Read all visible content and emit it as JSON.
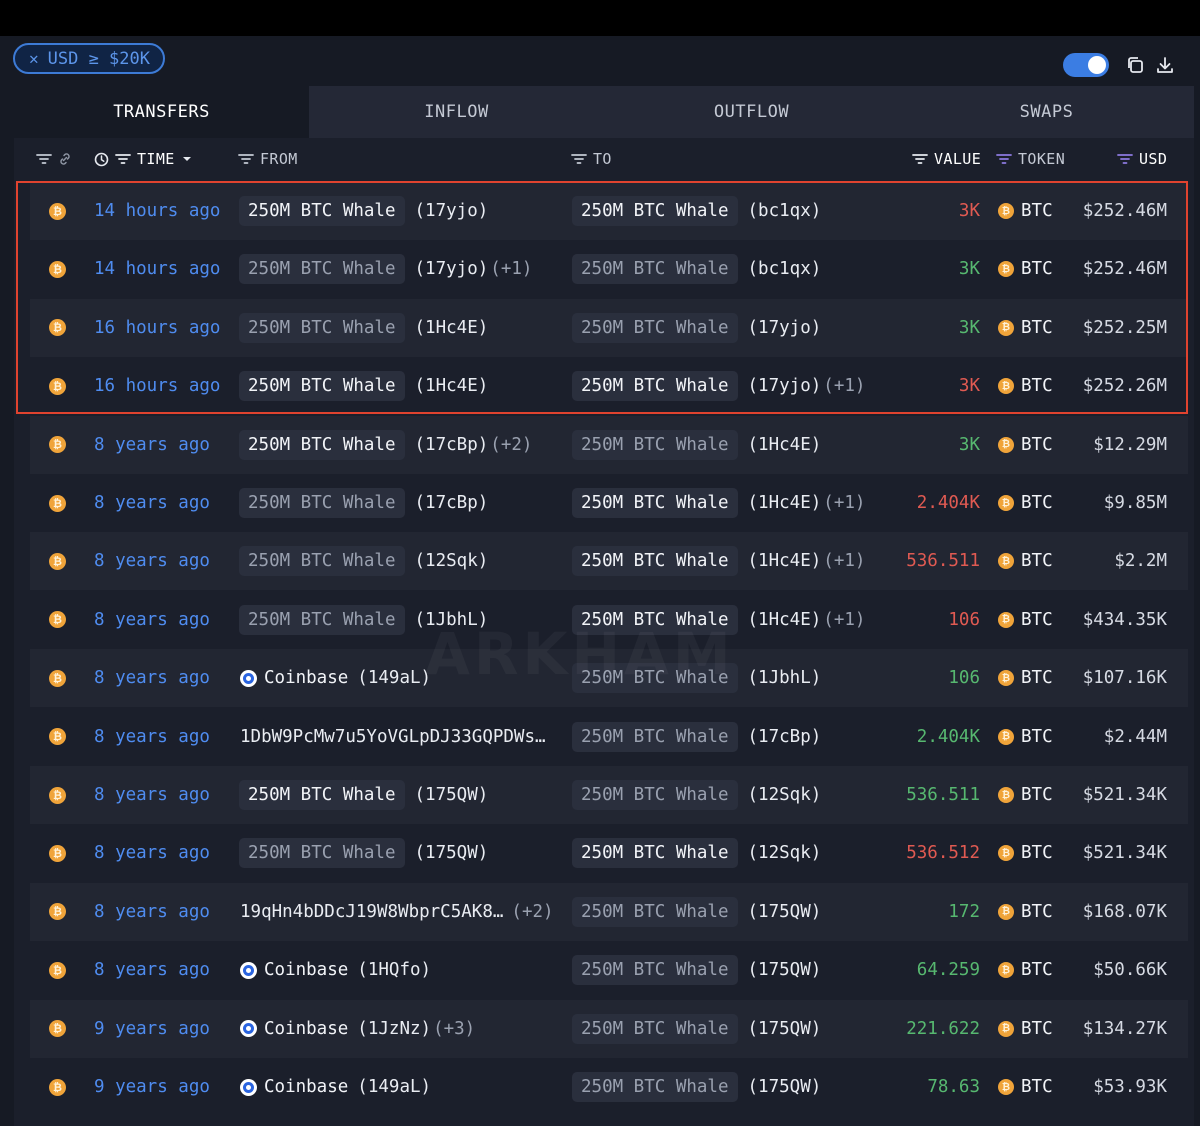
{
  "filter_chip": {
    "label": "USD ≥ $20K"
  },
  "tabs": [
    {
      "label": "TRANSFERS",
      "active": true
    },
    {
      "label": "INFLOW"
    },
    {
      "label": "OUTFLOW"
    },
    {
      "label": "SWAPS"
    }
  ],
  "columns": {
    "time": "TIME",
    "from": "FROM",
    "to": "TO",
    "value": "VALUE",
    "token": "TOKEN",
    "usd": "USD"
  },
  "watermark": "ARKHAM",
  "rows": [
    {
      "time": "14 hours ago",
      "from_entity": "250M BTC Whale",
      "from_addr": "(17yjo)",
      "from_extra": "",
      "to_entity": "250M BTC Whale",
      "to_addr": "(bc1qx)",
      "to_extra": "",
      "value": "3K",
      "value_color": "red",
      "token": "BTC",
      "usd": "$252.46M"
    },
    {
      "time": "14 hours ago",
      "from_entity": "250M BTC Whale",
      "from_addr": "(17yjo)",
      "from_extra": "(+1)",
      "to_entity": "250M BTC Whale",
      "to_addr": "(bc1qx)",
      "to_extra": "",
      "value": "3K",
      "value_color": "green",
      "token": "BTC",
      "usd": "$252.46M"
    },
    {
      "time": "16 hours ago",
      "from_entity": "250M BTC Whale",
      "from_addr": "(1Hc4E)",
      "from_extra": "",
      "to_entity": "250M BTC Whale",
      "to_addr": "(17yjo)",
      "to_extra": "",
      "value": "3K",
      "value_color": "green",
      "token": "BTC",
      "usd": "$252.25M"
    },
    {
      "time": "16 hours ago",
      "from_entity": "250M BTC Whale",
      "from_addr": "(1Hc4E)",
      "from_extra": "",
      "to_entity": "250M BTC Whale",
      "to_addr": "(17yjo)",
      "to_extra": "(+1)",
      "value": "3K",
      "value_color": "red",
      "token": "BTC",
      "usd": "$252.26M"
    },
    {
      "time": "8 years ago",
      "from_entity": "250M BTC Whale",
      "from_addr": "(17cBp)",
      "from_extra": "(+2)",
      "to_entity": "250M BTC Whale",
      "to_addr": "(1Hc4E)",
      "to_extra": "",
      "value": "3K",
      "value_color": "green",
      "token": "BTC",
      "usd": "$12.29M"
    },
    {
      "time": "8 years ago",
      "from_entity": "250M BTC Whale",
      "from_addr": "(17cBp)",
      "from_extra": "",
      "to_entity": "250M BTC Whale",
      "to_addr": "(1Hc4E)",
      "to_extra": "(+1)",
      "value": "2.404K",
      "value_color": "red",
      "token": "BTC",
      "usd": "$9.85M"
    },
    {
      "time": "8 years ago",
      "from_entity": "250M BTC Whale",
      "from_addr": "(12Sqk)",
      "from_extra": "",
      "to_entity": "250M BTC Whale",
      "to_addr": "(1Hc4E)",
      "to_extra": "(+1)",
      "value": "536.511",
      "value_color": "red",
      "token": "BTC",
      "usd": "$2.2M"
    },
    {
      "time": "8 years ago",
      "from_entity": "250M BTC Whale",
      "from_addr": "(1JbhL)",
      "from_extra": "",
      "to_entity": "250M BTC Whale",
      "to_addr": "(1Hc4E)",
      "to_extra": "(+1)",
      "value": "106",
      "value_color": "red",
      "token": "BTC",
      "usd": "$434.35K"
    },
    {
      "time": "8 years ago",
      "from_coinbase": "Coinbase",
      "from_addr": "(149aL)",
      "from_extra": "",
      "to_entity": "250M BTC Whale",
      "to_addr": "(1JbhL)",
      "to_extra": "",
      "value": "106",
      "value_color": "green",
      "token": "BTC",
      "usd": "$107.16K"
    },
    {
      "time": "8 years ago",
      "from_plain": "1DbW9PcMw7u5YoVGLpDJ33GQPDWs…",
      "to_entity": "250M BTC Whale",
      "to_addr": "(17cBp)",
      "to_extra": "",
      "value": "2.404K",
      "value_color": "green",
      "token": "BTC",
      "usd": "$2.44M"
    },
    {
      "time": "8 years ago",
      "from_entity": "250M BTC Whale",
      "from_addr": "(175QW)",
      "from_extra": "",
      "to_entity": "250M BTC Whale",
      "to_addr": "(12Sqk)",
      "to_extra": "",
      "value": "536.511",
      "value_color": "green",
      "token": "BTC",
      "usd": "$521.34K"
    },
    {
      "time": "8 years ago",
      "from_entity": "250M BTC Whale",
      "from_addr": "(175QW)",
      "from_extra": "",
      "to_entity": "250M BTC Whale",
      "to_addr": "(12Sqk)",
      "to_extra": "",
      "value": "536.512",
      "value_color": "red",
      "token": "BTC",
      "usd": "$521.34K"
    },
    {
      "time": "8 years ago",
      "from_plain": "19qHn4bDDcJ19W8WbprC5AK8…",
      "from_extra": "(+2)",
      "to_entity": "250M BTC Whale",
      "to_addr": "(175QW)",
      "to_extra": "",
      "value": "172",
      "value_color": "green",
      "token": "BTC",
      "usd": "$168.07K"
    },
    {
      "time": "8 years ago",
      "from_coinbase": "Coinbase",
      "from_addr": "(1HQfo)",
      "from_extra": "",
      "to_entity": "250M BTC Whale",
      "to_addr": "(175QW)",
      "to_extra": "",
      "value": "64.259",
      "value_color": "green",
      "token": "BTC",
      "usd": "$50.66K"
    },
    {
      "time": "9 years ago",
      "from_coinbase": "Coinbase",
      "from_addr": "(1JzNz)",
      "from_extra": "(+3)",
      "to_entity": "250M BTC Whale",
      "to_addr": "(175QW)",
      "to_extra": "",
      "value": "221.622",
      "value_color": "green",
      "token": "BTC",
      "usd": "$134.27K"
    },
    {
      "time": "9 years ago",
      "from_coinbase": "Coinbase",
      "from_addr": "(149aL)",
      "from_extra": "",
      "to_entity": "250M BTC Whale",
      "to_addr": "(175QW)",
      "to_extra": "",
      "value": "78.63",
      "value_color": "green",
      "token": "BTC",
      "usd": "$53.93K"
    }
  ],
  "row_styles": {
    "from_dim": [
      false,
      true,
      true,
      false,
      false,
      true,
      true,
      true,
      false,
      false,
      false,
      true,
      false,
      false,
      false,
      false
    ],
    "to_dim": [
      false,
      true,
      true,
      false,
      true,
      false,
      false,
      false,
      true,
      true,
      true,
      false,
      true,
      true,
      true,
      true
    ]
  }
}
